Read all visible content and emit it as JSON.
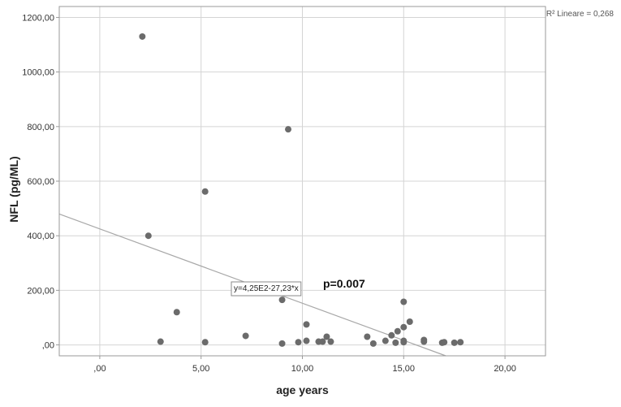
{
  "chart_data": {
    "type": "scatter",
    "title": "",
    "xlabel": "age years",
    "ylabel": "NFL (pg/ML)",
    "xlim": [
      -2,
      22
    ],
    "ylim": [
      -40,
      1240
    ],
    "x_ticks": [
      0,
      5,
      10,
      15,
      20
    ],
    "x_tick_labels": [
      ",00",
      "5,00",
      "10,00",
      "15,00",
      "20,00"
    ],
    "y_ticks": [
      0,
      200,
      400,
      600,
      800,
      1000,
      1200
    ],
    "y_tick_labels": [
      ",00",
      "200,00",
      "400,00",
      "600,00",
      "800,00",
      "1000,00",
      "1200,00"
    ],
    "grid": true,
    "points": [
      {
        "x": 2.1,
        "y": 1130
      },
      {
        "x": 2.4,
        "y": 400
      },
      {
        "x": 3.0,
        "y": 12
      },
      {
        "x": 3.8,
        "y": 120
      },
      {
        "x": 5.2,
        "y": 562
      },
      {
        "x": 5.2,
        "y": 10
      },
      {
        "x": 7.2,
        "y": 33
      },
      {
        "x": 9.0,
        "y": 5
      },
      {
        "x": 9.0,
        "y": 165
      },
      {
        "x": 9.3,
        "y": 790
      },
      {
        "x": 9.8,
        "y": 10
      },
      {
        "x": 10.2,
        "y": 75
      },
      {
        "x": 10.2,
        "y": 15
      },
      {
        "x": 10.8,
        "y": 12
      },
      {
        "x": 11.0,
        "y": 12
      },
      {
        "x": 11.2,
        "y": 30
      },
      {
        "x": 11.4,
        "y": 12
      },
      {
        "x": 13.2,
        "y": 30
      },
      {
        "x": 13.5,
        "y": 5
      },
      {
        "x": 14.1,
        "y": 15
      },
      {
        "x": 14.4,
        "y": 35
      },
      {
        "x": 14.6,
        "y": 8
      },
      {
        "x": 14.7,
        "y": 50
      },
      {
        "x": 15.0,
        "y": 158
      },
      {
        "x": 15.0,
        "y": 65
      },
      {
        "x": 15.0,
        "y": 15
      },
      {
        "x": 15.0,
        "y": 10
      },
      {
        "x": 15.3,
        "y": 85
      },
      {
        "x": 16.0,
        "y": 18
      },
      {
        "x": 16.0,
        "y": 12
      },
      {
        "x": 16.9,
        "y": 8
      },
      {
        "x": 17.0,
        "y": 10
      },
      {
        "x": 17.5,
        "y": 8
      },
      {
        "x": 17.8,
        "y": 10
      }
    ],
    "fit_line": {
      "intercept": 425,
      "slope": -27.23
    },
    "annotations": {
      "r2": "R² Lineare = 0,268",
      "equation": "y=4,25E2-27,23*x",
      "p_value": "p=0.007"
    },
    "colors": {
      "points": "#6b6b6b",
      "fit_line": "#a8a8a8",
      "grid": "#d4d4d4",
      "axes": "#9a9a9a"
    }
  }
}
